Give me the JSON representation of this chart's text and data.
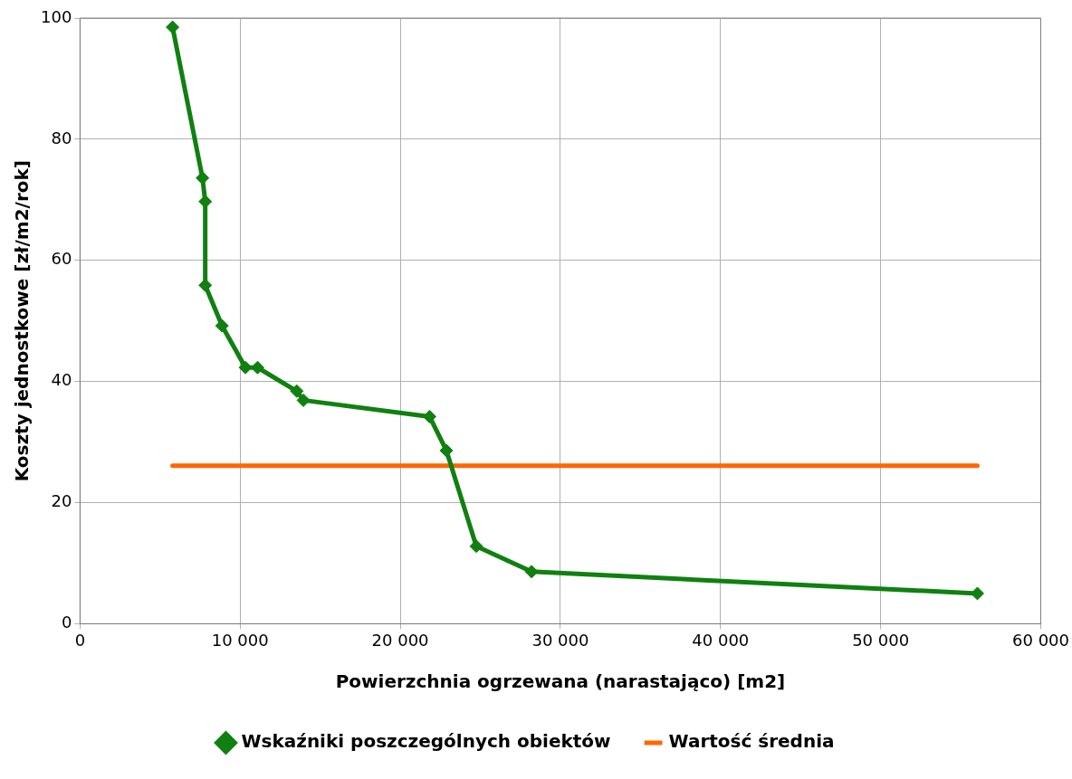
{
  "chart_data": {
    "type": "line",
    "xlabel": "Powierzchnia ogrzewana (narastająco) [m2]",
    "ylabel": "Koszty jednostkowe [zł/m2/rok]",
    "xlim": [
      0,
      60000
    ],
    "xticks": [
      0,
      {
        "value": 10000,
        "label": "10 000"
      },
      {
        "value": 20000,
        "label": "20 000"
      },
      {
        "value": 30000,
        "label": "30 000"
      },
      {
        "value": 40000,
        "label": "40 000"
      },
      {
        "value": 50000,
        "label": "50 000"
      },
      {
        "value": 60000,
        "label": "60 000"
      }
    ],
    "ylim": [
      0,
      100
    ],
    "yticks": [
      0,
      20,
      40,
      60,
      80,
      100
    ],
    "grid": true,
    "legend": "bottom",
    "series": [
      {
        "name": "Wskaźniki poszczególnych obiektów",
        "color": "#108010",
        "marker": "diamond",
        "x": [
          5780,
          7650,
          7820,
          7820,
          8870,
          10330,
          11090,
          13540,
          13950,
          21830,
          22880,
          24750,
          28200,
          56040
        ],
        "values": [
          98.5,
          73.6,
          69.7,
          55.9,
          49.2,
          42.3,
          42.3,
          38.4,
          36.9,
          34.2,
          28.6,
          12.8,
          8.6,
          5.0
        ]
      },
      {
        "name": "Wartość średnia",
        "color": "#ff6600",
        "marker": "none",
        "x": [
          5780,
          56040
        ],
        "values": [
          26.1,
          26.1
        ]
      }
    ]
  }
}
